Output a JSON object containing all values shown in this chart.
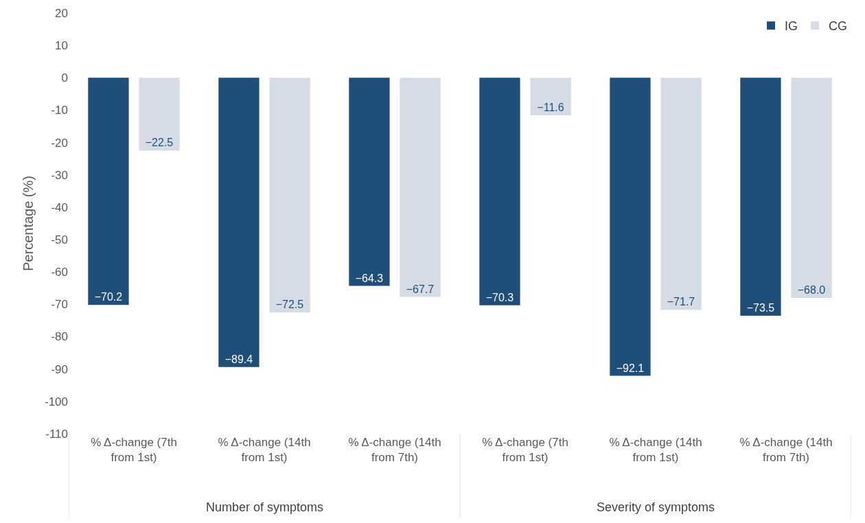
{
  "chart_data": {
    "type": "bar",
    "ylabel": "Percentage (%)",
    "categories": [
      "% Δ-change (7th from 1st)",
      "% Δ-change (14th from 1st)",
      "% Δ-change (14th from 7th)",
      "% Δ-change (7th from 1st)",
      "% Δ-change (14th from 1st)",
      "% Δ-change (14th from 7th)"
    ],
    "series": [
      {
        "name": "IG",
        "color": "#1f4e79",
        "values": [
          -70.2,
          -89.4,
          -64.3,
          -70.3,
          -92.1,
          -73.5
        ],
        "value_labels": [
          "−70.2",
          "−89.4",
          "−64.3",
          "−70.3",
          "−92.1",
          "−73.5"
        ]
      },
      {
        "name": "CG",
        "color": "#d6dce5",
        "values": [
          -22.5,
          -72.5,
          -67.7,
          -11.6,
          -71.7,
          -68.0
        ],
        "value_labels": [
          "−22.5",
          "−72.5",
          "−67.7",
          "−11.6",
          "−71.7",
          "−68.0"
        ]
      }
    ],
    "annotations": [
      "Number of symptoms",
      "Severity of symptoms"
    ],
    "ylim": [
      -110,
      20
    ],
    "yticks": [
      -110,
      -100,
      -90,
      -80,
      -70,
      -60,
      -50,
      -40,
      -30,
      -20,
      -10,
      0,
      10,
      20
    ],
    "legend": "top right"
  }
}
